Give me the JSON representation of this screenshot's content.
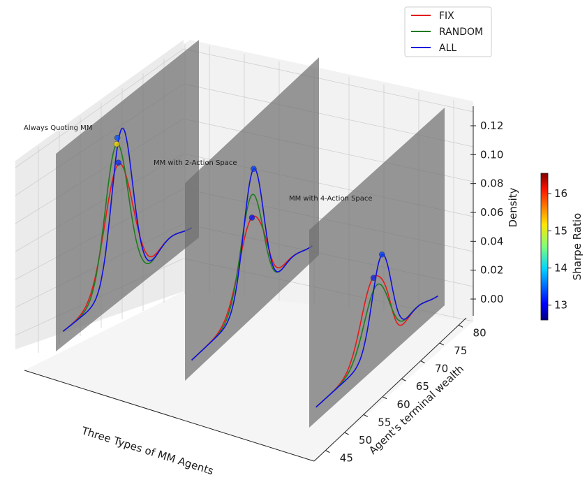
{
  "chart_data": {
    "type": "line",
    "projection": "3d",
    "xlabel": "Three Types of MM Agents",
    "ylabel": "Agent's terminal wealth",
    "zlabel": "Density",
    "ylim": [
      42,
      82
    ],
    "zlim": [
      -0.01,
      0.128
    ],
    "yticks": [
      "45",
      "50",
      "55",
      "60",
      "65",
      "70",
      "75",
      "80"
    ],
    "zticks": [
      "0.00",
      "0.02",
      "0.04",
      "0.06",
      "0.08",
      "0.10",
      "0.12"
    ],
    "legend": {
      "placement": "top-right",
      "entries": [
        "FIX",
        "RANDOM",
        "ALL"
      ]
    },
    "series_colors": {
      "FIX": "#e41a1c",
      "RANDOM": "#1f7a1f",
      "ALL": "#1010e0"
    },
    "grid": true,
    "colorbar": {
      "label": "Sharpe Ratio",
      "ticks": [
        "13",
        "14",
        "15",
        "16"
      ],
      "range": [
        12.6,
        16.55
      ],
      "colormap": "jet"
    },
    "panels": [
      {
        "label": "Always Quoting MM",
        "series": [
          {
            "name": "FIX",
            "peak_wealth": 59.5,
            "peak_density": 0.086,
            "spread": 3.8,
            "bump": 0.02
          },
          {
            "name": "RANDOM",
            "peak_wealth": 59.0,
            "peak_density": 0.101,
            "spread": 3.2,
            "bump": 0.0
          },
          {
            "name": "ALL",
            "peak_wealth": 60.5,
            "peak_density": 0.109,
            "spread": 2.9,
            "bump": 0.0
          }
        ],
        "peak_markers": [
          {
            "wealth": 59.0,
            "density": 0.101,
            "sharpe": 15.2
          },
          {
            "wealth": 59.2,
            "density": 0.105,
            "sharpe": 13.4
          },
          {
            "wealth": 59.5,
            "density": 0.087,
            "sharpe": 13.2
          }
        ]
      },
      {
        "label": "MM with 2-Action Space",
        "series": [
          {
            "name": "FIX",
            "peak_wealth": 62.0,
            "peak_density": 0.06,
            "spread": 3.8,
            "bump": 0.25
          },
          {
            "name": "RANDOM",
            "peak_wealth": 62.0,
            "peak_density": 0.076,
            "spread": 3.3,
            "bump": 0.0
          },
          {
            "name": "ALL",
            "peak_wealth": 62.5,
            "peak_density": 0.093,
            "spread": 3.0,
            "bump": 0.0
          }
        ],
        "peak_markers": [
          {
            "wealth": 62.5,
            "density": 0.093,
            "sharpe": 13.3
          },
          {
            "wealth": 62.0,
            "density": 0.06,
            "sharpe": 13.1
          }
        ]
      },
      {
        "label": "MM with 4-Action Space",
        "series": [
          {
            "name": "FIX",
            "peak_wealth": 61.0,
            "peak_density": 0.054,
            "spread": 3.6,
            "bump": 0.45
          },
          {
            "name": "RANDOM",
            "peak_wealth": 62.0,
            "peak_density": 0.047,
            "spread": 3.7,
            "bump": 0.0
          },
          {
            "name": "ALL",
            "peak_wealth": 63.5,
            "peak_density": 0.065,
            "spread": 2.9,
            "bump": 0.0
          }
        ],
        "peak_markers": [
          {
            "wealth": 63.5,
            "density": 0.065,
            "sharpe": 13.3
          },
          {
            "wealth": 61.0,
            "density": 0.054,
            "sharpe": 13.2
          }
        ]
      }
    ]
  }
}
